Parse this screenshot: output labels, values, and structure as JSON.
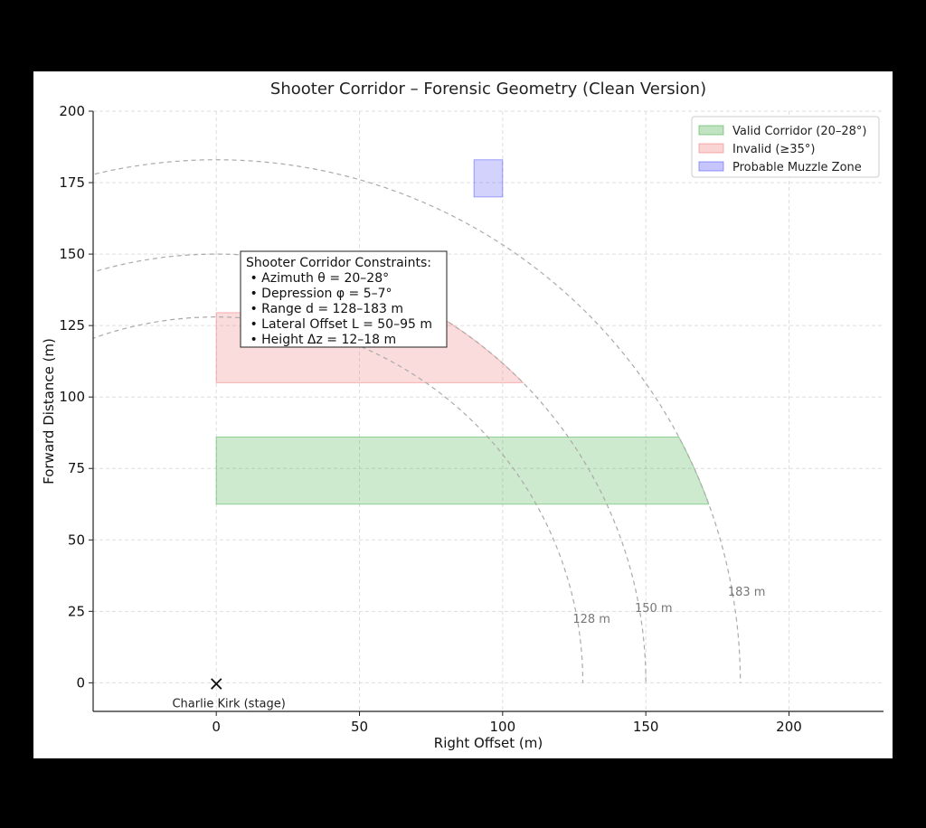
{
  "chart_data": {
    "type": "area",
    "title": "Shooter Corridor – Forensic Geometry (Clean Version)",
    "xlabel": "Right Offset (m)",
    "ylabel": "Forward Distance (m)",
    "xlim": [
      -43,
      233
    ],
    "ylim": [
      -10,
      200
    ],
    "x_ticks": [
      0,
      50,
      100,
      150,
      200
    ],
    "y_ticks": [
      0,
      25,
      50,
      75,
      100,
      125,
      150,
      175,
      200
    ],
    "grid": true,
    "legend_position": "top-right",
    "regions": [
      {
        "name": "Valid Corridor (20–28°)",
        "color": "#4caf50",
        "y_range": [
          62.5,
          86
        ],
        "x_start": 0,
        "clip_radius": 183
      },
      {
        "name": "Invalid (≥35°)",
        "color": "#f08080",
        "y_range": [
          105,
          129.5
        ],
        "x_start": 0,
        "clip_radius": 150
      },
      {
        "name": "Probable Muzzle Zone",
        "color": "#5c5cf5",
        "x_range": [
          90,
          100
        ],
        "y_range": [
          170,
          183
        ]
      }
    ],
    "range_arcs": [
      {
        "radius": 128,
        "label": "128 m"
      },
      {
        "radius": 150,
        "label": "150 m"
      },
      {
        "radius": 183,
        "label": "183 m"
      }
    ],
    "marker": {
      "x": 0,
      "y": 0,
      "symbol": "×",
      "label": "Charlie Kirk (stage)"
    },
    "annotation": {
      "lines": [
        "Shooter Corridor Constraints:",
        " • Azimuth θ = 20–28°",
        " • Depression φ = 5–7°",
        " • Range d = 128–183 m",
        " • Lateral Offset L = 50–95 m",
        " • Height Δz = 12–18 m"
      ]
    }
  }
}
